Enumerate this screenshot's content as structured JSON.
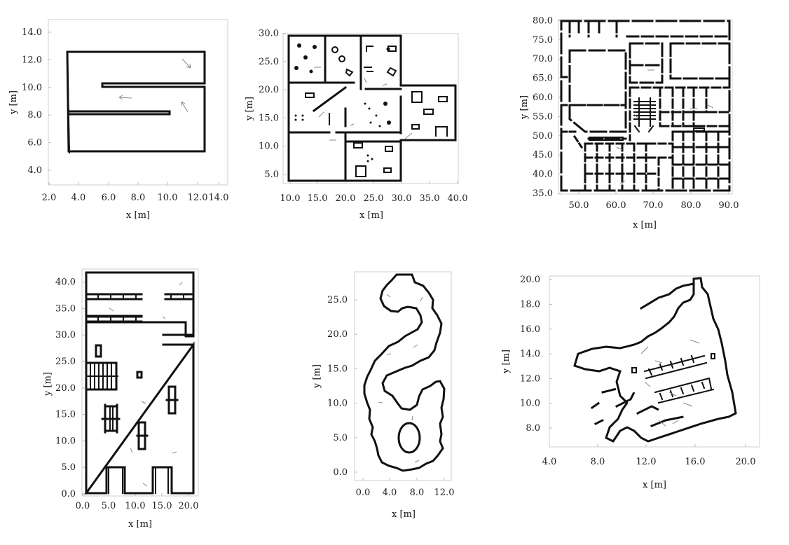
{
  "plots": [
    {
      "id": "p1",
      "xlabel": "x [m]",
      "ylabel": "y [m]",
      "xticks": [
        "2.0",
        "4.0",
        "6.0",
        "8.0",
        "10.0",
        "12.0",
        "14.0"
      ],
      "yticks": [
        "4.0",
        "6.0",
        "8.0",
        "10.0",
        "12.0",
        "14.0"
      ]
    },
    {
      "id": "p2",
      "xlabel": "x [m]",
      "ylabel": "y [m]",
      "xticks": [
        "10.0",
        "15.0",
        "20.0",
        "25.0",
        "30.0",
        "35.0",
        "40.0"
      ],
      "yticks": [
        "5.0",
        "10.0",
        "15.0",
        "20.0",
        "25.0",
        "30.0"
      ]
    },
    {
      "id": "p3",
      "xlabel": "x [m]",
      "ylabel": "y [m]",
      "xticks": [
        "50.0",
        "60.0",
        "70.0",
        "80.0",
        "90.0"
      ],
      "yticks": [
        "35.0",
        "40.0",
        "45.0",
        "50.0",
        "55.0",
        "60.0",
        "65.0",
        "70.0",
        "75.0",
        "80.0"
      ]
    },
    {
      "id": "p4",
      "xlabel": "x [m]",
      "ylabel": "y [m]",
      "xticks": [
        "0.0",
        "5.0",
        "10.0",
        "15.0",
        "20.0"
      ],
      "yticks": [
        "0.0",
        "5.0",
        "10.0",
        "15.0",
        "20.0",
        "25.0",
        "30.0",
        "35.0",
        "40.0"
      ]
    },
    {
      "id": "p5",
      "xlabel": "x [m]",
      "ylabel": "y [m]",
      "xticks": [
        "0.0",
        "4.0",
        "8.0",
        "12.0"
      ],
      "yticks": [
        "0.0",
        "5.0",
        "10.0",
        "15.0",
        "20.0",
        "25.0"
      ]
    },
    {
      "id": "p6",
      "xlabel": "x [m]",
      "ylabel": "y [m]",
      "xticks": [
        "4.0",
        "8.0",
        "12.0",
        "16.0",
        "20.0"
      ],
      "yticks": [
        "8.0",
        "10.0",
        "12.0",
        "14.0",
        "16.0",
        "18.0",
        "20.0"
      ]
    }
  ]
}
